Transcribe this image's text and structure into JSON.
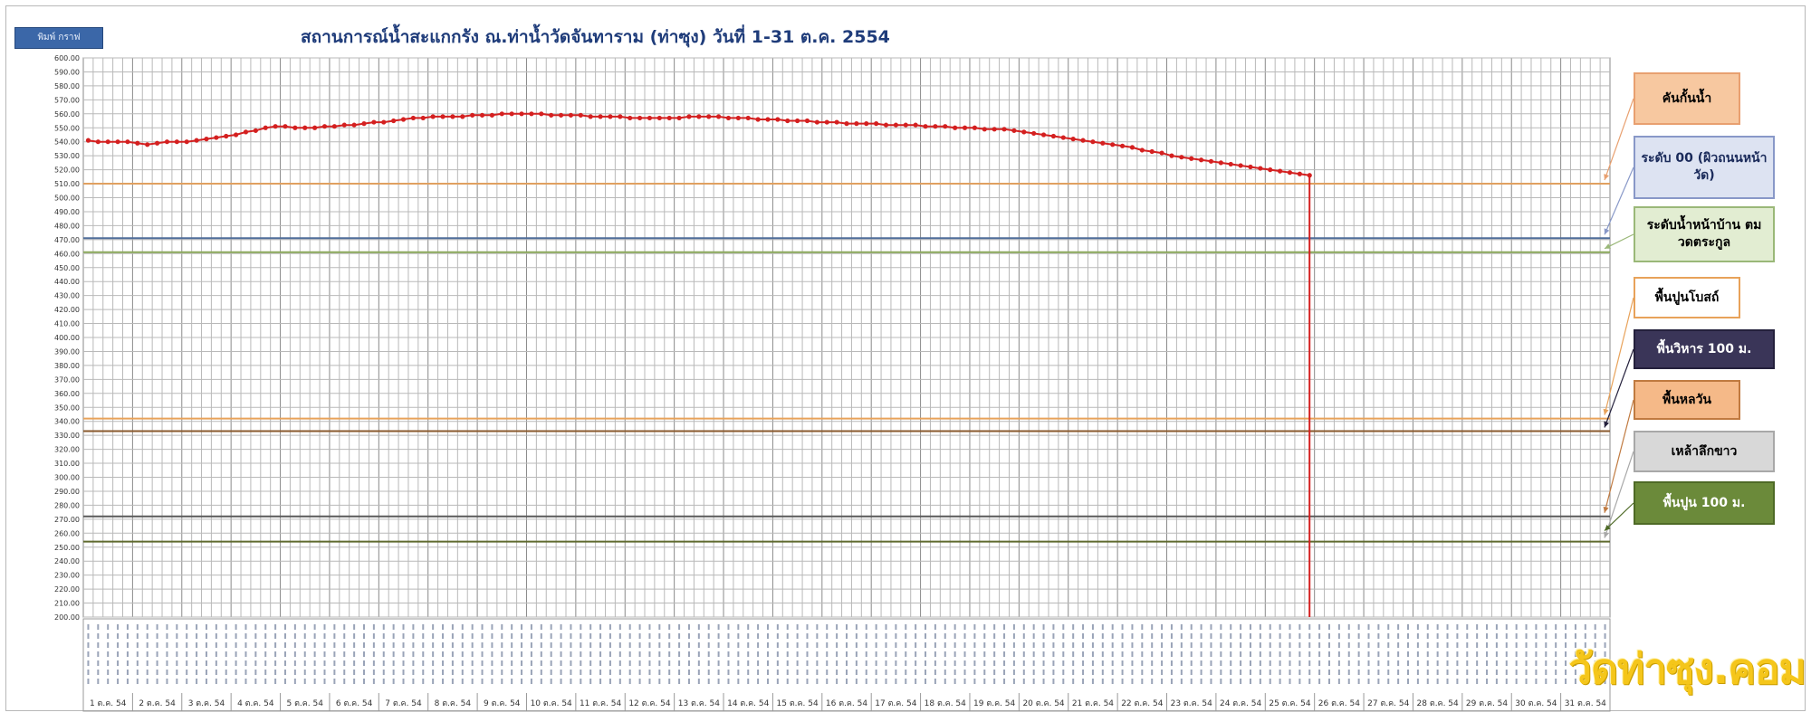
{
  "print_button": "พิมพ์ กราฟ",
  "chart_data": {
    "type": "line",
    "title": "สถานการณ์น้ำสะแกกรัง ณ.ท่าน้ำวัดจันทาราม (ท่าซุง) วันที่ 1-31 ต.ค. 2554",
    "y_ticks": [
      "600.00",
      "590.00",
      "580.00",
      "570.00",
      "560.00",
      "550.00",
      "540.00",
      "530.00",
      "520.00",
      "510.00",
      "500.00",
      "490.00",
      "480.00",
      "470.00",
      "460.00",
      "450.00",
      "440.00",
      "430.00",
      "420.00",
      "410.00",
      "400.00",
      "390.00",
      "380.00",
      "370.00",
      "360.00",
      "350.00",
      "340.00",
      "330.00",
      "320.00",
      "310.00",
      "300.00",
      "290.00",
      "280.00",
      "270.00",
      "260.00",
      "250.00",
      "240.00",
      "230.00",
      "220.00",
      "210.00",
      "200.00"
    ],
    "ylim": [
      200,
      600
    ],
    "date_labels": [
      "1 ต.ค. 54",
      "2 ต.ค. 54",
      "3 ต.ค. 54",
      "4 ต.ค. 54",
      "5 ต.ค. 54",
      "6 ต.ค. 54",
      "7 ต.ค. 54",
      "8 ต.ค. 54",
      "9 ต.ค. 54",
      "10 ต.ค. 54",
      "11 ต.ค. 54",
      "12 ต.ค. 54",
      "13 ต.ค. 54",
      "14 ต.ค. 54",
      "15 ต.ค. 54",
      "16 ต.ค. 54",
      "17 ต.ค. 54",
      "18 ต.ค. 54",
      "19 ต.ค. 54",
      "20 ต.ค. 54",
      "21 ต.ค. 54",
      "22 ต.ค. 54",
      "23 ต.ค. 54",
      "24 ต.ค. 54",
      "25 ต.ค. 54",
      "26 ต.ค. 54",
      "27 ต.ค. 54",
      "28 ต.ค. 54",
      "29 ต.ค. 54",
      "30 ต.ค. 54",
      "31 ต.ค. 54"
    ],
    "readings_per_day": 5,
    "series": [
      {
        "color": "#d42020",
        "values": [
          541,
          540,
          540,
          540,
          540,
          539,
          538,
          539,
          540,
          540,
          540,
          541,
          542,
          543,
          544,
          545,
          547,
          548,
          550,
          551,
          551,
          550,
          550,
          550,
          551,
          551,
          552,
          552,
          553,
          554,
          554,
          555,
          556,
          557,
          557,
          558,
          558,
          558,
          558,
          559,
          559,
          559,
          560,
          560,
          560,
          560,
          560,
          559,
          559,
          559,
          559,
          558,
          558,
          558,
          558,
          557,
          557,
          557,
          557,
          557,
          557,
          558,
          558,
          558,
          558,
          557,
          557,
          557,
          556,
          556,
          556,
          555,
          555,
          555,
          554,
          554,
          554,
          553,
          553,
          553,
          553,
          552,
          552,
          552,
          552,
          551,
          551,
          551,
          550,
          550,
          550,
          549,
          549,
          549,
          548,
          547,
          546,
          545,
          544,
          543,
          542,
          541,
          540,
          539,
          538,
          537,
          536,
          534,
          533,
          532,
          530,
          529,
          528,
          527,
          526,
          525,
          524,
          523,
          522,
          521,
          520,
          519,
          518,
          517,
          516
        ]
      }
    ],
    "drop_to": 200,
    "reference_lines": [
      {
        "y": 510,
        "color": "#e0a060"
      },
      {
        "y": 471,
        "color": "#4f6d9a"
      },
      {
        "y": 461,
        "color": "#8aa85a"
      },
      {
        "y": 342,
        "color": "#e8a25a"
      },
      {
        "y": 333,
        "color": "#8a5a2e"
      },
      {
        "y": 272,
        "color": "#5a5a5a"
      },
      {
        "y": 254,
        "color": "#5f6a2e"
      }
    ]
  },
  "legend": [
    {
      "text": "คันกั้นน้ำ",
      "bg": "#f7c8a0",
      "border": "#e8a070",
      "color": "#000000"
    },
    {
      "text": "ระดับ 00 (ผิวถนนหน้าวัด)",
      "bg": "#dde3f2",
      "border": "#8898c8",
      "color": "#1a2a5a"
    },
    {
      "text": "ระดับน้ำหน้าบ้าน ตมวดตระกูล",
      "bg": "#e2edd2",
      "border": "#9ab878",
      "color": "#000000"
    },
    {
      "text": "พื้นปูนโบสถ์",
      "bg": "#ffffff",
      "border": "#e8a25a",
      "color": "#000000"
    },
    {
      "text": "พื้นวิหาร 100 ม.",
      "bg": "#3a3558",
      "border": "#24203c",
      "color": "#ffffff"
    },
    {
      "text": "พื้นหลวัน",
      "bg": "#f5b988",
      "border": "#c07a40",
      "color": "#000000"
    },
    {
      "text": "เหล้าลึกขาว",
      "bg": "#d8d8d8",
      "border": "#a8a8a8",
      "color": "#000000"
    },
    {
      "text": "พื้นปูน 100 ม.",
      "bg": "#6b8a3a",
      "border": "#4e6a26",
      "color": "#ffffff"
    }
  ],
  "watermark": "วัดท่าซุง.คอม"
}
